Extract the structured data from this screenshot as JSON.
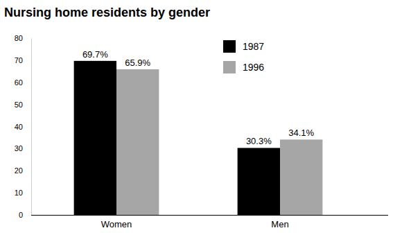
{
  "chart_data": {
    "type": "bar",
    "title": "Nursing home residents by gender",
    "categories": [
      "Women",
      "Men"
    ],
    "series": [
      {
        "name": "1987",
        "color": "#000000",
        "values": [
          69.7,
          30.3
        ],
        "value_labels": [
          "69.7%",
          "30.3%"
        ]
      },
      {
        "name": "1996",
        "color": "#a6a6a6",
        "values": [
          65.9,
          34.1
        ],
        "value_labels": [
          "65.9%",
          "34.1%"
        ]
      }
    ],
    "ylim": [
      0,
      80
    ],
    "yticks": [
      0,
      10,
      20,
      30,
      40,
      50,
      60,
      70,
      80
    ],
    "grid": false,
    "legend": "upper right",
    "data_labels": true
  }
}
